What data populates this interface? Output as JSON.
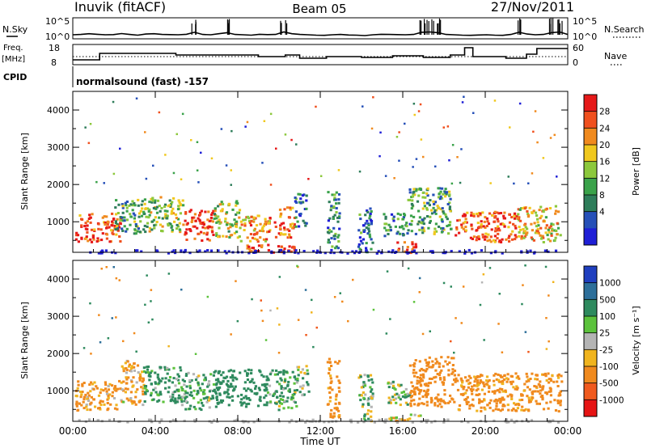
{
  "header": {
    "station": "Inuvik (fitACF)",
    "beam": "Beam 05",
    "date": "27/Nov/2011"
  },
  "summary": {
    "nsky_label": "N.Sky",
    "nsky_ticks": [
      "10^5",
      "10^0"
    ],
    "nsearch_label": "N.Search",
    "nsearch_ticks": [
      "10^5",
      "10^0"
    ],
    "freq_label": "Freq.",
    "freq_unit": "[MHz]",
    "freq_ticks": [
      "18",
      "8"
    ],
    "nave_label": "Nave",
    "nave_ticks": [
      "60",
      "0"
    ],
    "cpid_label": "CPID",
    "cpid_value": "normalsound (fast) -157",
    "nsky_levels": [
      0.55,
      0.6,
      0.7,
      0.62,
      0.55,
      0.58,
      0.72,
      0.6,
      0.5,
      0.65,
      0.7,
      0.6,
      0.58,
      0.55,
      0.62,
      0.9,
      0.6,
      0.55,
      0.7,
      0.85,
      0.6,
      0.55,
      0.5,
      0.62,
      0.58,
      0.6,
      0.95,
      0.7,
      0.6,
      0.55,
      0.5,
      0.48,
      0.55,
      0.6,
      0.52,
      0.5,
      0.45,
      0.55,
      0.62,
      0.6,
      0.58,
      0.55,
      0.6,
      0.9,
      0.95,
      0.85,
      0.6,
      0.55,
      0.5,
      0.48,
      0.52,
      0.55,
      0.5,
      0.48,
      0.6,
      0.9,
      0.65,
      0.55,
      0.6,
      0.85,
      0.95,
      0.6
    ],
    "freq_steps": [
      [
        0,
        0.2
      ],
      [
        1.3,
        0.6
      ],
      [
        5,
        0.5
      ],
      [
        9,
        0.4
      ],
      [
        10.3,
        0.5
      ],
      [
        11,
        0.3
      ],
      [
        12.3,
        0.4
      ],
      [
        14,
        0.35
      ],
      [
        15.5,
        0.45
      ],
      [
        17,
        0.35
      ],
      [
        18.3,
        0.5
      ],
      [
        19,
        0.95
      ],
      [
        19.4,
        0.4
      ],
      [
        21,
        0.3
      ],
      [
        22,
        0.55
      ],
      [
        22.5,
        0.9
      ],
      [
        24,
        0.9
      ]
    ]
  },
  "power_panel": {
    "ylabel": "Slant Range [km]",
    "colorbar_label": "Power [dB]",
    "colorbar_ticks": [
      "28",
      "24",
      "20",
      "16",
      "12",
      "8",
      "4"
    ],
    "colors": [
      "#1f1fd6",
      "#2650b8",
      "#2e7d5a",
      "#3aa24a",
      "#8cc83c",
      "#f0c81e",
      "#f08a1e",
      "#f0501e",
      "#e61919"
    ]
  },
  "velocity_panel": {
    "ylabel": "Slant Range [km]",
    "colorbar_label": "Velocity [m s⁻¹]",
    "colorbar_ticks": [
      "1000",
      "500",
      "100",
      "25",
      "-25",
      "-100",
      "-500",
      "-1000"
    ],
    "colors": [
      "#1f3fbf",
      "#2d6f9a",
      "#2e8a5e",
      "#5cc23c",
      "#b4b4b4",
      "#f0b41e",
      "#f08a1e",
      "#f05a1e",
      "#e61414"
    ],
    "ground_scatter_color": "#b4b4b4"
  },
  "xaxis": {
    "label": "Time UT",
    "ticks": [
      "00:00",
      "04:00",
      "08:00",
      "12:00",
      "16:00",
      "20:00",
      "00:00"
    ]
  },
  "chart_data": {
    "type": "heatmap",
    "title": "Inuvik (fitACF)  Beam 05  27/Nov/2011",
    "x": {
      "label": "Time UT",
      "range_hours": [
        0,
        24
      ],
      "ticks": [
        "00:00",
        "04:00",
        "08:00",
        "12:00",
        "16:00",
        "20:00",
        "00:00"
      ]
    },
    "y": {
      "label": "Slant Range [km]",
      "range": [
        180,
        4500
      ],
      "ticks": [
        1000,
        2000,
        3000,
        4000
      ]
    },
    "panels": [
      {
        "name": "Power",
        "unit": "dB",
        "color_scale": [
          4,
          30
        ],
        "regions": [
          {
            "t0": 0.1,
            "t1": 2.3,
            "r0": 480,
            "r1": 1250,
            "v": 26
          },
          {
            "t0": 2.0,
            "t1": 3.2,
            "r0": 700,
            "r1": 1650,
            "v": 14
          },
          {
            "t0": 3.2,
            "t1": 5.3,
            "r0": 750,
            "r1": 1700,
            "v": 16
          },
          {
            "t0": 5.3,
            "t1": 6.8,
            "r0": 520,
            "r1": 1350,
            "v": 28
          },
          {
            "t0": 6.8,
            "t1": 8.1,
            "r0": 600,
            "r1": 1600,
            "v": 18
          },
          {
            "t0": 8.1,
            "t1": 9.8,
            "r0": 500,
            "r1": 1200,
            "v": 22
          },
          {
            "t0": 9.9,
            "t1": 10.7,
            "r0": 600,
            "r1": 1450,
            "v": 25
          },
          {
            "t0": 10.7,
            "t1": 11.3,
            "r0": 900,
            "r1": 1800,
            "v": 10
          },
          {
            "t0": 12.3,
            "t1": 12.9,
            "r0": 300,
            "r1": 1850,
            "v": 12
          },
          {
            "t0": 13.8,
            "t1": 14.5,
            "r0": 200,
            "r1": 1400,
            "v": 10
          },
          {
            "t0": 15.0,
            "t1": 16.3,
            "r0": 650,
            "r1": 1250,
            "v": 12
          },
          {
            "t0": 16.2,
            "t1": 18.3,
            "r0": 700,
            "r1": 1950,
            "v": 14
          },
          {
            "t0": 18.5,
            "t1": 21.5,
            "r0": 480,
            "r1": 1300,
            "v": 26
          },
          {
            "t0": 21.5,
            "t1": 23.6,
            "r0": 480,
            "r1": 1450,
            "v": 20
          },
          {
            "t0": 8.2,
            "t1": 10.8,
            "r0": 200,
            "r1": 430,
            "v": 26
          },
          {
            "t0": 15.6,
            "t1": 16.6,
            "r0": 200,
            "r1": 480,
            "v": 27
          },
          {
            "t0": 0.2,
            "t1": 23.5,
            "r0": 180,
            "r1": 270,
            "v": 6
          }
        ]
      },
      {
        "name": "Velocity",
        "unit": "m s-1",
        "color_scale": [
          -1000,
          1000
        ],
        "regions": [
          {
            "t0": 0.1,
            "t1": 2.3,
            "r0": 500,
            "r1": 1300,
            "v": -150
          },
          {
            "t0": 2.3,
            "t1": 3.4,
            "r0": 650,
            "r1": 1850,
            "v": -120
          },
          {
            "t0": 3.4,
            "t1": 5.2,
            "r0": 700,
            "r1": 1700,
            "v": 150
          },
          {
            "t0": 5.2,
            "t1": 6.8,
            "r0": 500,
            "r1": 1550,
            "v": 120
          },
          {
            "t0": 6.8,
            "t1": 9.4,
            "r0": 600,
            "r1": 1600,
            "v": 300
          },
          {
            "t0": 9.4,
            "t1": 10.8,
            "r0": 500,
            "r1": 1600,
            "v": 120
          },
          {
            "t0": 10.8,
            "t1": 11.4,
            "r0": 900,
            "r1": 1700,
            "v": 60
          },
          {
            "t0": 12.3,
            "t1": 12.9,
            "r0": 300,
            "r1": 1900,
            "v": -200
          },
          {
            "t0": 13.8,
            "t1": 14.5,
            "r0": 200,
            "r1": 1500,
            "v": 80
          },
          {
            "t0": 15.2,
            "t1": 16.3,
            "r0": 650,
            "r1": 1300,
            "v": 50
          },
          {
            "t0": 16.3,
            "t1": 18.5,
            "r0": 600,
            "r1": 1950,
            "v": -300
          },
          {
            "t0": 18.5,
            "t1": 23.7,
            "r0": 480,
            "r1": 1500,
            "v": -200
          },
          {
            "t0": 15.3,
            "t1": 16.8,
            "r0": 200,
            "r1": 400,
            "v": -60
          },
          {
            "t0": 0.2,
            "t1": 23.5,
            "r0": 180,
            "r1": 260,
            "v": 0
          }
        ]
      }
    ]
  }
}
